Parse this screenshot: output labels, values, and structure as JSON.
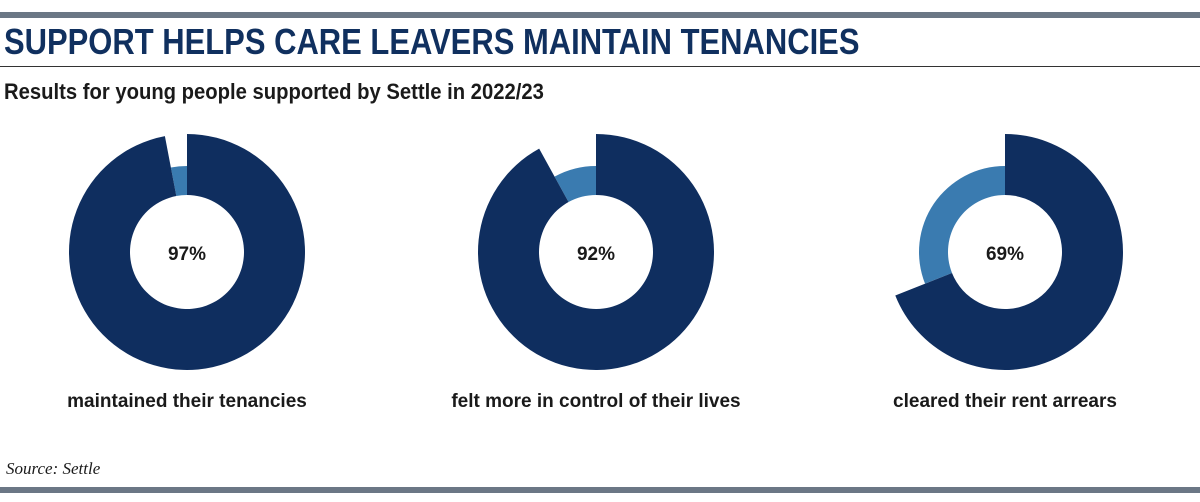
{
  "header": {
    "title": "SUPPORT HELPS CARE LEAVERS MAINTAIN TENANCIES",
    "subtitle": "Results for young people supported by Settle in 2022/23"
  },
  "footer": {
    "source": "Source: Settle"
  },
  "colors": {
    "primary": "#0f2e5f",
    "secondary": "#3a7bb0",
    "rule": "#6b7785"
  },
  "chart_data": [
    {
      "type": "pie",
      "variant": "donut",
      "value": 97,
      "value_label": "97%",
      "label": "maintained their tenancies"
    },
    {
      "type": "pie",
      "variant": "donut",
      "value": 92,
      "value_label": "92%",
      "label": "felt more in control of their lives"
    },
    {
      "type": "pie",
      "variant": "donut",
      "value": 69,
      "value_label": "69%",
      "label": "cleared their rent arrears"
    }
  ]
}
